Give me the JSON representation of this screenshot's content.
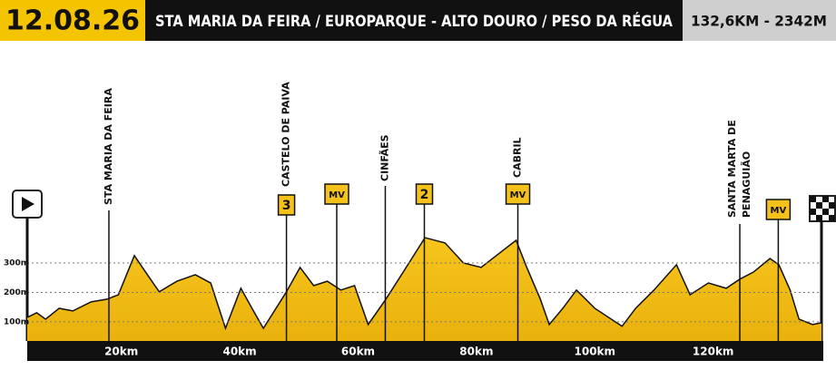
{
  "chart_data": {
    "type": "area",
    "date": "12.08.26",
    "title": "STA MARIA DA FEIRA / EUROPARQUE - ALTO DOURO / PESO DA RÉGUA",
    "distance": "132,6KM - 2342M",
    "color": "#f5c21b",
    "grid": true,
    "x": [
      4.1,
      5.7,
      7.2,
      9.5,
      11.8,
      14.9,
      17.6,
      19.5,
      22.2,
      24.1,
      26.4,
      29.4,
      32.5,
      35.1,
      37.6,
      40.2,
      42.5,
      44.0,
      47.9,
      50.2,
      52.5,
      54.8,
      57.1,
      59.4,
      61.7,
      64.7,
      68.6,
      71.3,
      74.7,
      77.8,
      80.8,
      84.7,
      86.7,
      88.5,
      90.8,
      92.3,
      94.6,
      96.9,
      100.0,
      104.6,
      106.9,
      110.0,
      113.8,
      116.1,
      119.2,
      122.2,
      124.5,
      126.8,
      129.6,
      131.1,
      133.0,
      134.5,
      136.8,
      138.3
    ],
    "values": [
      115,
      131,
      109,
      146,
      137,
      168,
      177,
      192,
      325,
      269,
      202,
      238,
      260,
      232,
      78,
      214,
      131,
      78,
      202,
      285,
      223,
      238,
      208,
      223,
      91,
      177,
      300,
      386,
      368,
      300,
      285,
      346,
      377,
      285,
      177,
      91,
      146,
      208,
      146,
      85,
      146,
      208,
      294,
      192,
      232,
      214,
      245,
      269,
      315,
      294,
      208,
      109,
      91,
      97
    ],
    "xlim": [
      4.1,
      138.3
    ],
    "ylim": [
      35,
      608
    ],
    "xticks": [
      {
        "value": 20,
        "label": "20km"
      },
      {
        "value": 40,
        "label": "40km"
      },
      {
        "value": 60,
        "label": "60km"
      },
      {
        "value": 80,
        "label": "80km"
      },
      {
        "value": 100,
        "label": "100km"
      },
      {
        "value": 120,
        "label": "120km"
      }
    ],
    "yticks": [
      {
        "value": 100,
        "label": "100m"
      },
      {
        "value": 200,
        "label": "200m"
      },
      {
        "value": 300,
        "label": "300m"
      }
    ],
    "towns": [
      {
        "lines": [
          "STA MARIA DA FEIRA"
        ],
        "km": 17.9
      },
      {
        "lines": [
          "CASTELO DE PAIVA"
        ],
        "km": 47.9
      },
      {
        "lines": [
          "CINFÃES"
        ],
        "km": 64.6
      },
      {
        "lines": [
          "CABRIL"
        ],
        "km": 87.0
      },
      {
        "lines": [
          "SANTA MARTA DE",
          "PENAGUIÃO"
        ],
        "km": 124.5
      }
    ],
    "climbs": [
      {
        "label": "3",
        "km": 47.9
      },
      {
        "label": "MV",
        "km": 56.4
      },
      {
        "label": "2",
        "km": 71.2
      },
      {
        "label": "MV",
        "km": 87.0
      },
      {
        "label": "MV",
        "km": 131.0
      }
    ]
  }
}
